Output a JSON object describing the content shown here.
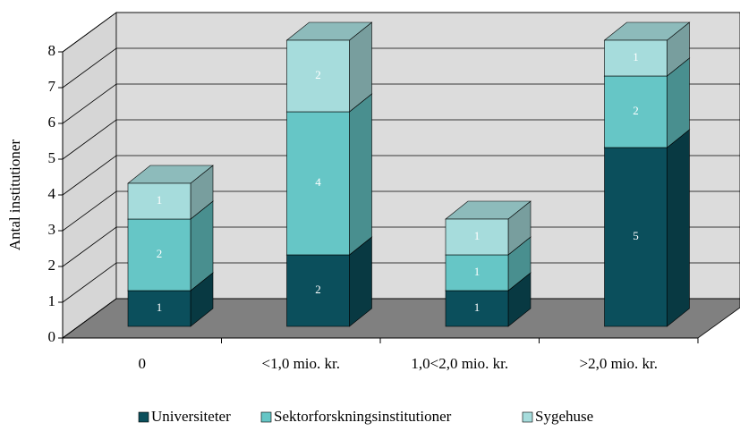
{
  "chart_data": {
    "type": "bar3d_stacked",
    "ylabel": "Antal institutioner",
    "categories": [
      "0",
      "<1,0 mio. kr.",
      "1,0<2,0 mio. kr.",
      ">2,0 mio. kr."
    ],
    "series": [
      {
        "name": "Universiteter",
        "color": "#0b4f5c",
        "values": [
          1,
          2,
          1,
          5
        ]
      },
      {
        "name": "Sektorforskningsinstitutioner",
        "color": "#66c6c6",
        "values": [
          2,
          4,
          1,
          2
        ]
      },
      {
        "name": "Sygehuse",
        "color": "#a6dcdc",
        "values": [
          1,
          2,
          1,
          1
        ]
      }
    ],
    "ylim": [
      0,
      8
    ],
    "yticks": [
      0,
      1,
      2,
      3,
      4,
      5,
      6,
      7,
      8
    ],
    "grid": true,
    "legend": "bottom"
  }
}
